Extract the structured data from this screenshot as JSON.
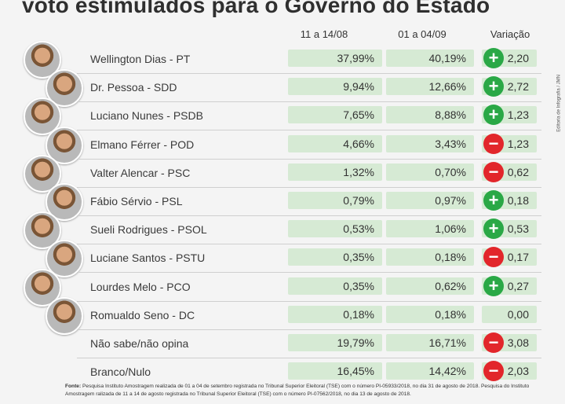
{
  "title": "voto estimulados para o Governo do Estado",
  "columns": {
    "c1": "11 a 14/08",
    "c2": "01 a 04/09",
    "var": "Variação"
  },
  "side_credit": "Editoria de Infografia / JMN",
  "colors": {
    "bar": "#d6ead4",
    "up": "#2aa846",
    "down": "#e2262b"
  },
  "chart_data": {
    "type": "table",
    "title": "voto estimulados para o Governo do Estado",
    "columns": [
      "11 a 14/08",
      "01 a 04/09",
      "Variação"
    ],
    "rows": [
      {
        "name": "Wellington Dias - PT",
        "v1": "37,99%",
        "v2": "40,19%",
        "dir": "up",
        "sign": "+",
        "var": "2,20"
      },
      {
        "name": "Dr. Pessoa - SDD",
        "v1": "9,94%",
        "v2": "12,66%",
        "dir": "up",
        "sign": "+",
        "var": "2,72"
      },
      {
        "name": "Luciano Nunes - PSDB",
        "v1": "7,65%",
        "v2": "8,88%",
        "dir": "up",
        "sign": "+",
        "var": "1,23"
      },
      {
        "name": "Elmano Férrer - POD",
        "v1": "4,66%",
        "v2": "3,43%",
        "dir": "down",
        "sign": "−",
        "var": "1,23"
      },
      {
        "name": "Valter Alencar - PSC",
        "v1": "1,32%",
        "v2": "0,70%",
        "dir": "down",
        "sign": "−",
        "var": "0,62"
      },
      {
        "name": "Fábio Sérvio - PSL",
        "v1": "0,79%",
        "v2": "0,97%",
        "dir": "up",
        "sign": "+",
        "var": "0,18"
      },
      {
        "name": "Sueli Rodrigues - PSOL",
        "v1": "0,53%",
        "v2": "1,06%",
        "dir": "up",
        "sign": "+",
        "var": "0,53"
      },
      {
        "name": "Luciane Santos - PSTU",
        "v1": "0,35%",
        "v2": "0,18%",
        "dir": "down",
        "sign": "−",
        "var": "0,17"
      },
      {
        "name": "Lourdes Melo - PCO",
        "v1": "0,35%",
        "v2": "0,62%",
        "dir": "up",
        "sign": "+",
        "var": "0,27"
      },
      {
        "name": "Romualdo Seno - DC",
        "v1": "0,18%",
        "v2": "0,18%",
        "dir": "none",
        "sign": "",
        "var": "0,00"
      },
      {
        "name": "Não sabe/não opina",
        "v1": "19,79%",
        "v2": "16,71%",
        "dir": "down",
        "sign": "−",
        "var": "3,08"
      },
      {
        "name": "Branco/Nulo",
        "v1": "16,45%",
        "v2": "14,42%",
        "dir": "down",
        "sign": "−",
        "var": "2,03"
      }
    ]
  },
  "footer": {
    "label": "Fonte:",
    "text": "Pesquisa Instituto Amostragem realizada de 01 a 04 de setembro registrada no Tribunal Superior Eleitoral (TSE) com o número PI-05933/2018, no dia 31 de agosto de 2018. Pesquisa do Instituto Amostragem ralizada de 11 a 14 de agosto registrada no Tribunal Superior Eleitoral (TSE) com o número PI-07562/2018, no dia 13 de agosto de 2018."
  }
}
